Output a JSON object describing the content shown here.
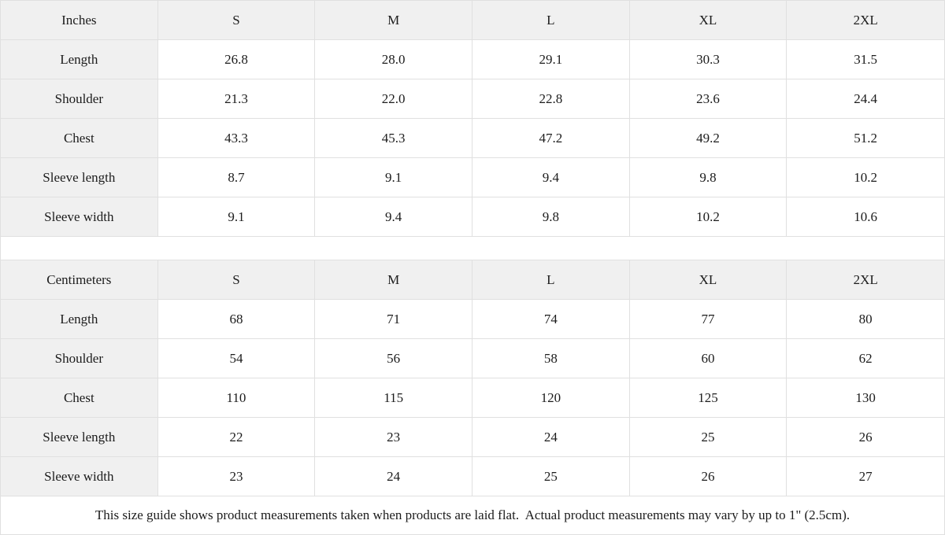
{
  "colors": {
    "header_bg": "#f0f0f0",
    "border": "#e0e0e0",
    "text": "#1c1c1c",
    "row_bg": "#ffffff"
  },
  "footer": {
    "note": "This size guide shows product measurements taken when products are laid flat.  Actual product measurements may vary by up to 1\" (2.5cm)."
  },
  "chart_data": [
    {
      "type": "table",
      "title": "Inches",
      "columns": [
        "Inches",
        "S",
        "M",
        "L",
        "XL",
        "2XL"
      ],
      "rows": [
        {
          "label": "Length",
          "values": [
            "26.8",
            "28.0",
            "29.1",
            "30.3",
            "31.5"
          ]
        },
        {
          "label": "Shoulder",
          "values": [
            "21.3",
            "22.0",
            "22.8",
            "23.6",
            "24.4"
          ]
        },
        {
          "label": "Chest",
          "values": [
            "43.3",
            "45.3",
            "47.2",
            "49.2",
            "51.2"
          ]
        },
        {
          "label": "Sleeve length",
          "values": [
            "8.7",
            "9.1",
            "9.4",
            "9.8",
            "10.2"
          ]
        },
        {
          "label": "Sleeve width",
          "values": [
            "9.1",
            "9.4",
            "9.8",
            "10.2",
            "10.6"
          ]
        }
      ]
    },
    {
      "type": "table",
      "title": "Centimeters",
      "columns": [
        "Centimeters",
        "S",
        "M",
        "L",
        "XL",
        "2XL"
      ],
      "rows": [
        {
          "label": "Length",
          "values": [
            "68",
            "71",
            "74",
            "77",
            "80"
          ]
        },
        {
          "label": "Shoulder",
          "values": [
            "54",
            "56",
            "58",
            "60",
            "62"
          ]
        },
        {
          "label": "Chest",
          "values": [
            "110",
            "115",
            "120",
            "125",
            "130"
          ]
        },
        {
          "label": "Sleeve length",
          "values": [
            "22",
            "23",
            "24",
            "25",
            "26"
          ]
        },
        {
          "label": "Sleeve width",
          "values": [
            "23",
            "24",
            "25",
            "26",
            "27"
          ]
        }
      ]
    }
  ]
}
